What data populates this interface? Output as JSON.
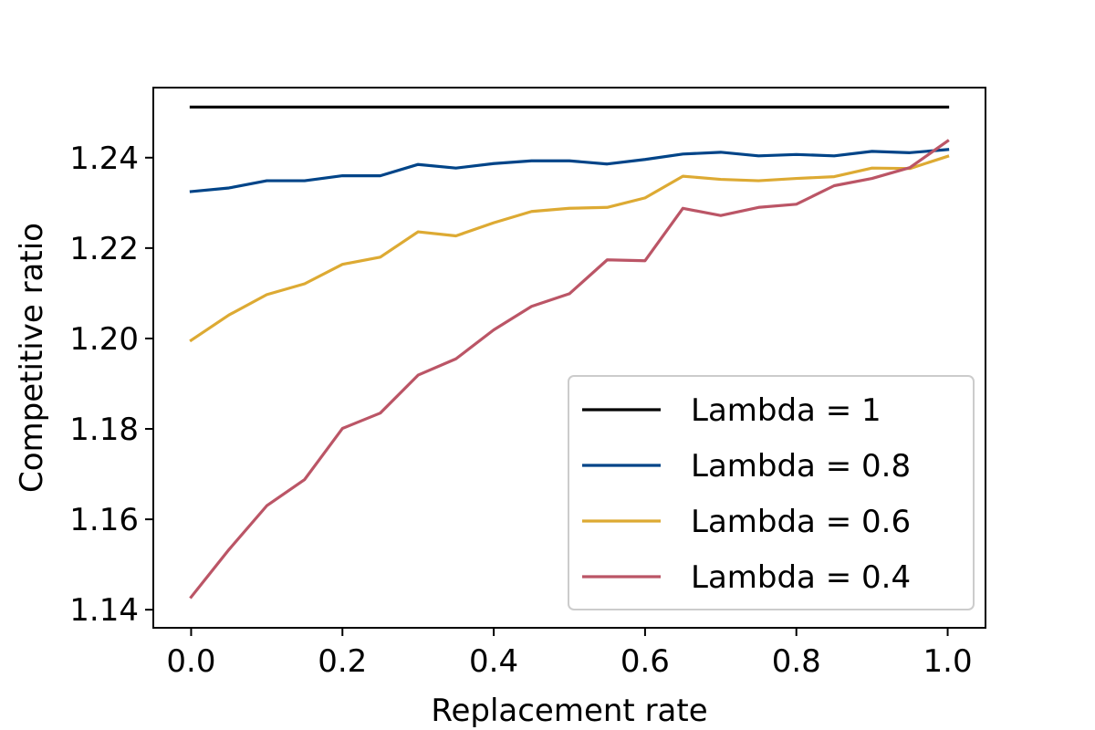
{
  "chart_data": {
    "type": "line",
    "title": "",
    "xlabel": "Replacement rate",
    "ylabel": "Competitive ratio",
    "xlim": [
      -0.05,
      1.05
    ],
    "ylim": [
      1.136,
      1.2555
    ],
    "xticks": [
      0.0,
      0.2,
      0.4,
      0.6,
      0.8,
      1.0
    ],
    "xtick_labels": [
      "0.0",
      "0.2",
      "0.4",
      "0.6",
      "0.8",
      "1.0"
    ],
    "yticks": [
      1.14,
      1.16,
      1.18,
      1.2,
      1.22,
      1.24
    ],
    "ytick_labels": [
      "1.14",
      "1.16",
      "1.18",
      "1.20",
      "1.22",
      "1.24"
    ],
    "grid": false,
    "legend_position": "lower-right",
    "x": [
      0.0,
      0.05,
      0.1,
      0.15,
      0.2,
      0.25,
      0.3,
      0.35,
      0.4,
      0.45,
      0.5,
      0.55,
      0.6,
      0.65,
      0.7,
      0.75,
      0.8,
      0.85,
      0.9,
      0.95,
      1.0
    ],
    "series": [
      {
        "name": "Lambda = 1",
        "color": "#000000",
        "values": [
          1.2512,
          1.2512,
          1.2512,
          1.2512,
          1.2512,
          1.2512,
          1.2512,
          1.2512,
          1.2512,
          1.2512,
          1.2512,
          1.2512,
          1.2512,
          1.2512,
          1.2512,
          1.2512,
          1.2512,
          1.2512,
          1.2512,
          1.2512,
          1.2512
        ]
      },
      {
        "name": "Lambda = 0.8",
        "color": "#004488",
        "values": [
          1.2325,
          1.2333,
          1.2349,
          1.2349,
          1.236,
          1.236,
          1.2385,
          1.2377,
          1.2387,
          1.2393,
          1.2393,
          1.2386,
          1.2396,
          1.2408,
          1.2412,
          1.2404,
          1.2407,
          1.2404,
          1.2414,
          1.2411,
          1.2418
        ]
      },
      {
        "name": "Lambda = 0.6",
        "color": "#DDAA33",
        "values": [
          1.1996,
          1.2052,
          1.2097,
          1.2121,
          1.2164,
          1.218,
          1.2236,
          1.2227,
          1.2256,
          1.2281,
          1.2288,
          1.229,
          1.2311,
          1.2359,
          1.2352,
          1.2349,
          1.2354,
          1.2358,
          1.2377,
          1.2376,
          1.2403
        ]
      },
      {
        "name": "Lambda = 0.4",
        "color": "#BB5566",
        "values": [
          1.1428,
          1.1533,
          1.163,
          1.1688,
          1.1801,
          1.1835,
          1.1919,
          1.1955,
          1.2019,
          1.2071,
          1.2099,
          1.2174,
          1.2172,
          1.2288,
          1.2272,
          1.229,
          1.2297,
          1.2338,
          1.2354,
          1.2378,
          1.2437
        ]
      }
    ]
  }
}
